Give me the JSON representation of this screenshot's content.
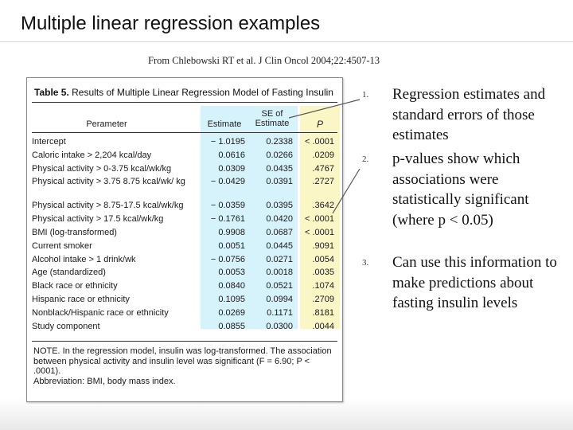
{
  "slide": {
    "title": "Multiple linear regression examples",
    "citation": "From Chlebowski RT et al. J Clin Oncol 2004;22:4507-13"
  },
  "table": {
    "title_bold": "Table 5.",
    "title_rest": "Results of Multiple Linear Regression Model of Fasting Insulin",
    "headers": {
      "parameter": "Perameter",
      "estimate": "Estimate",
      "se": "SE of Estimate",
      "p": "P"
    },
    "rows": [
      {
        "param": "Intercept",
        "est": "− 1.0195",
        "se": "0.2338",
        "p": "< .0001"
      },
      {
        "param": "Caloric intake > 2,204 kcal/day",
        "est": "0.0616",
        "se": "0.0266",
        "p": ".0209"
      },
      {
        "param": "Physical activity > 0-3.75 kcal/wk/kg",
        "est": "0.0309",
        "se": "0.0435",
        "p": ".4767"
      },
      {
        "param": "Physical activity > 3.75 8.75 kcal/wk/ kg",
        "est": "− 0.0429",
        "se": "0.0391",
        "p": ".2727"
      },
      {
        "param": "Physical activity > 8.75-17.5 kcal/wk/kg",
        "est": "− 0.0359",
        "se": "0.0395",
        "p": ".3642"
      },
      {
        "param": "Physical activity > 17.5 kcal/wk/kg",
        "est": "− 0.1761",
        "se": "0.0420",
        "p": "< .0001"
      },
      {
        "param": "BMI (log-transformed)",
        "est": "0.9908",
        "se": "0.0687",
        "p": "< .0001"
      },
      {
        "param": "Current smoker",
        "est": "0.0051",
        "se": "0.0445",
        "p": ".9091"
      },
      {
        "param": "Alcohol intake > 1 drink/wk",
        "est": "− 0.0756",
        "se": "0.0271",
        "p": ".0054"
      },
      {
        "param": "Age (standardized)",
        "est": "0.0053",
        "se": "0.0018",
        "p": ".0035"
      },
      {
        "param": "Black race or ethnicity",
        "est": "0.0840",
        "se": "0.0521",
        "p": ".1074"
      },
      {
        "param": "Hispanic race or ethnicity",
        "est": "0.1095",
        "se": "0.0994",
        "p": ".2709"
      },
      {
        "param": "Nonblack/Hispanic race or ethnicity",
        "est": "0.0269",
        "se": "0.1171",
        "p": ".8181"
      },
      {
        "param": "Study component",
        "est": "0.0855",
        "se": "0.0300",
        "p": ".0044"
      }
    ],
    "note": "NOTE. In the regression model, insulin was log-transformed. The association between physical activity and insulin level was significant (F = 6.90; P < .0001).",
    "abbreviation": "Abbreviation: BMI, body mass index."
  },
  "points": [
    {
      "num": "1.",
      "text": "Regression estimates and standard errors of those estimates"
    },
    {
      "num": "2.",
      "text": "p-values show which associations were statistically significant (where p < 0.05)"
    },
    {
      "num": "3.",
      "text": "Can use this information to make predictions about fasting insulin levels"
    }
  ],
  "colors": {
    "se_highlight": "#d6f2fb",
    "p_highlight": "#fbf6c6"
  }
}
